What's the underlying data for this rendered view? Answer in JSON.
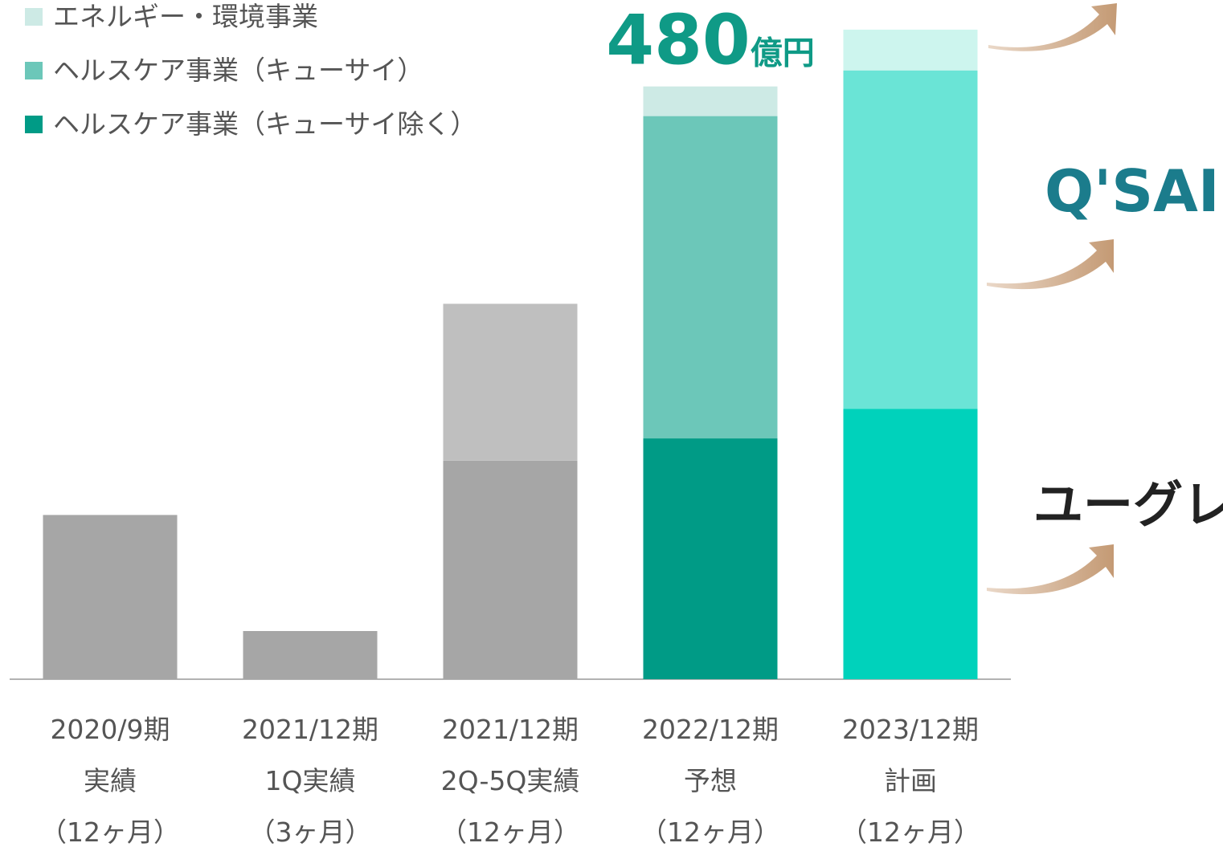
{
  "chart_data": {
    "type": "stacked_bar",
    "categories": [
      [
        "2020/9期",
        "実績",
        "（12ヶ月）"
      ],
      [
        "2021/12期",
        "1Q実績",
        "（3ヶ月）"
      ],
      [
        "2021/12期",
        "2Q-5Q実績",
        "（12ヶ月）"
      ],
      [
        "2022/12期",
        "予想",
        "（12ヶ月）"
      ],
      [
        "2023/12期",
        "計画",
        "（12ヶ月）"
      ]
    ],
    "series": [
      {
        "name": "ヘルスケア事業（キューサイ除く）",
        "color": "#009b86",
        "colors": [
          "#a6a6a6",
          "#a6a6a6",
          "#a6a6a6",
          "#009b86",
          "#00d2bb"
        ],
        "values": [
          133,
          39,
          177,
          195,
          219
        ]
      },
      {
        "name": "ヘルスケア事業（キューサイ）",
        "color": "#6cc7b9",
        "colors": [
          null,
          null,
          "#bfbfbf",
          "#6cc7b9",
          "#6ae4d6"
        ],
        "values": [
          null,
          null,
          127,
          261,
          274
        ]
      },
      {
        "name": "エネルギー・環境事業",
        "color": "#cdeae5",
        "colors": [
          null,
          null,
          null,
          "#cdeae5",
          "#cdf5ee"
        ],
        "values": [
          null,
          null,
          null,
          24,
          33
        ]
      }
    ],
    "ylim": [
      0,
      550
    ],
    "annotation": {
      "number": "480",
      "unit": "億円",
      "category": 3
    },
    "logos": [
      "Q'SAI",
      "ユーグレナ"
    ]
  }
}
